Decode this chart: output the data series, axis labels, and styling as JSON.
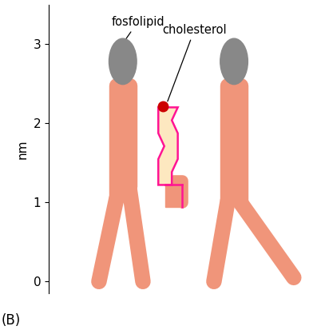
{
  "bg_color": "#ffffff",
  "phospholipid_color": "#f0957a",
  "head_color": "#888888",
  "cholesterol_fill": "#fde8c0",
  "cholesterol_outline": "#ff1493",
  "cholesterol_head_color": "#cc0000",
  "title_label": "(B)",
  "ylabel": "nm",
  "yticks": [
    0,
    1,
    2,
    3
  ],
  "annotation_fosfolipid": "fosfolipid",
  "annotation_cholesterol": "cholesterol",
  "xlim": [
    0.0,
    4.2
  ],
  "ylim": [
    -0.15,
    3.5
  ],
  "figsize": [
    3.97,
    4.13
  ],
  "dpi": 100
}
